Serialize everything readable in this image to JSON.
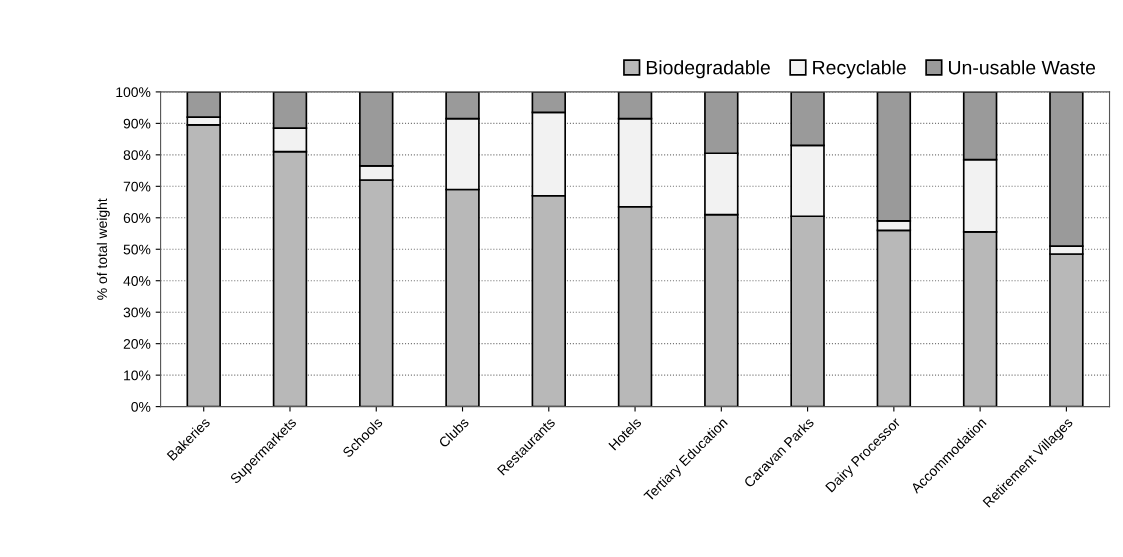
{
  "chart_data": {
    "type": "bar",
    "stacked": true,
    "ylabel": "% of total weight",
    "categories": [
      "Bakeries",
      "Supermarkets",
      "Schools",
      "Clubs",
      "Restaurants",
      "Hotels",
      "Tertiary Education",
      "Caravan Parks",
      "Dairy Processor",
      "Accommodation",
      "Retirement Villages"
    ],
    "series": [
      {
        "name": "Biodegradable",
        "color": "#b8b8b8",
        "values": [
          89.5,
          81,
          72,
          69,
          67,
          63.5,
          61,
          60.5,
          56,
          55.5,
          48.5
        ]
      },
      {
        "name": "Recyclable",
        "color": "#f2f2f2",
        "values": [
          2.5,
          7.5,
          4.5,
          22.5,
          26.5,
          28,
          19.5,
          22.5,
          3,
          23,
          2.5
        ]
      },
      {
        "name": "Un-usable Waste",
        "color": "#9a9a9a",
        "values": [
          8,
          11.5,
          23.5,
          8.5,
          6.5,
          8.5,
          19.5,
          17,
          41,
          21.5,
          49
        ]
      }
    ],
    "ylim": [
      0,
      100
    ],
    "yticks": [
      {
        "value": 0,
        "label": "0%"
      },
      {
        "value": 10,
        "label": "10%"
      },
      {
        "value": 20,
        "label": "20%"
      },
      {
        "value": 30,
        "label": "30%"
      },
      {
        "value": 40,
        "label": "40%"
      },
      {
        "value": 50,
        "label": "50%"
      },
      {
        "value": 60,
        "label": "60%"
      },
      {
        "value": 70,
        "label": "70%"
      },
      {
        "value": 80,
        "label": "80%"
      },
      {
        "value": 90,
        "label": "90%"
      },
      {
        "value": 100,
        "label": "100%"
      }
    ],
    "grid": "y",
    "legend": "top right"
  }
}
